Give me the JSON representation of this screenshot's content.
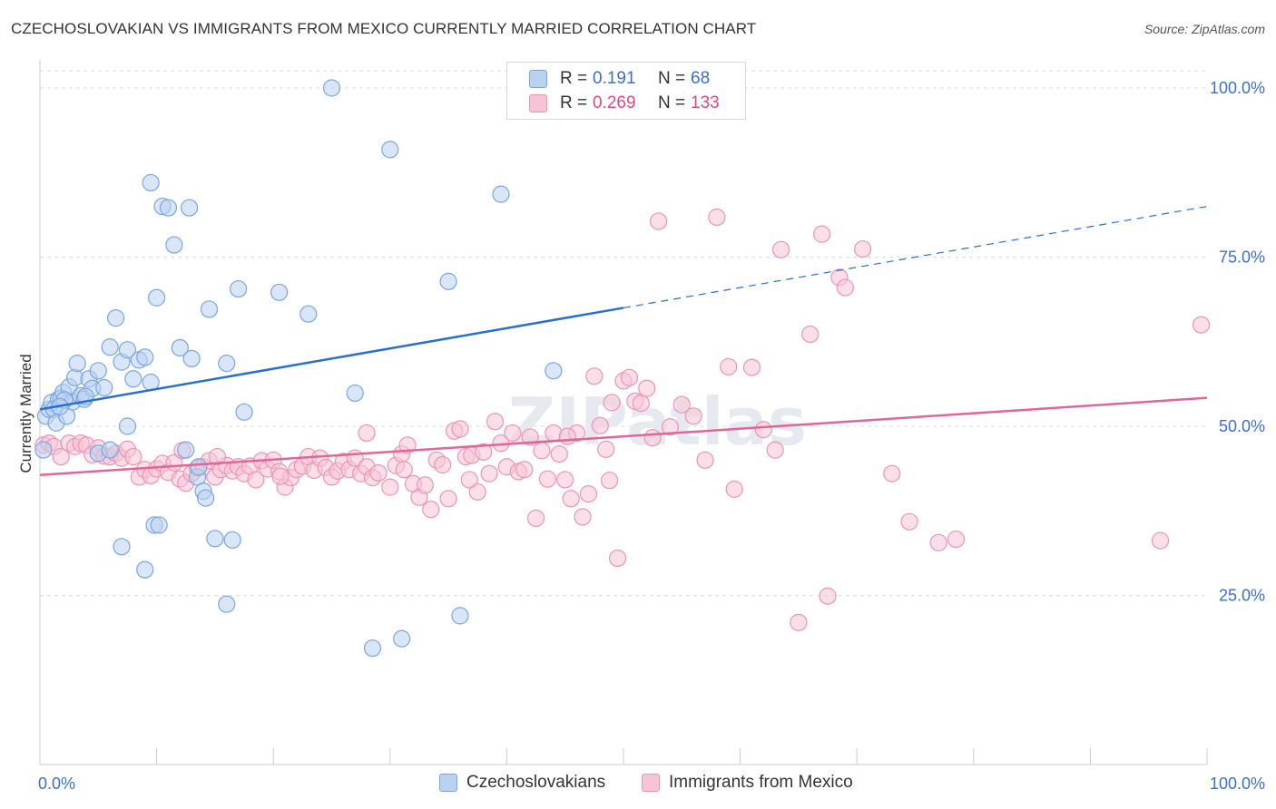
{
  "title": "CZECHOSLOVAKIAN VS IMMIGRANTS FROM MEXICO CURRENTLY MARRIED CORRELATION CHART",
  "source": "Source: ZipAtlas.com",
  "watermark": "ZIPatlas",
  "legend": {
    "rows": [
      {
        "r_label": "R =",
        "r_value": "0.191",
        "n_label": "N =",
        "n_value": "68"
      },
      {
        "r_label": "R =",
        "r_value": "0.269",
        "n_label": "N =",
        "n_value": "133"
      }
    ]
  },
  "bottom_legend": [
    "Czechoslovakians",
    "Immigrants from Mexico"
  ],
  "colors": {
    "blue_fill": "#b9d2f0",
    "blue_stroke": "#7aa6e0",
    "blue_line": "#2a6fcf",
    "pink_fill": "#f7c4d6",
    "pink_stroke": "#ec94b5",
    "pink_line": "#e0669a",
    "axis_label_blue": "#3a6fd0",
    "grid": "#dddddd"
  },
  "chart_data": {
    "type": "scatter",
    "ylabel": "Currently Married",
    "xlim": [
      0,
      100
    ],
    "ylim": [
      0,
      100
    ],
    "x_tick_labels": [
      "0.0%",
      "100.0%"
    ],
    "y_tick_labels": [
      {
        "value": 25,
        "label": "25.0%"
      },
      {
        "value": 50,
        "label": "50.0%"
      },
      {
        "value": 75,
        "label": "75.0%"
      },
      {
        "value": 100,
        "label": "100.0%"
      }
    ],
    "series": [
      {
        "name": "Czechoslovakians",
        "r": 0.191,
        "n": 68,
        "trend": {
          "x0": 0,
          "y0": 52.5,
          "x1": 50,
          "y1": 67.5,
          "dashed_to_x": 100,
          "dashed_to_y": 82.5
        },
        "points": [
          [
            0.3,
            46.5
          ],
          [
            0.5,
            51.5
          ],
          [
            0.8,
            52.5
          ],
          [
            1.0,
            53.5
          ],
          [
            1.2,
            52.5
          ],
          [
            1.4,
            50.5
          ],
          [
            1.6,
            54.0
          ],
          [
            1.8,
            54.2
          ],
          [
            2.0,
            55.0
          ],
          [
            2.3,
            51.5
          ],
          [
            2.5,
            55.8
          ],
          [
            2.8,
            53.6
          ],
          [
            3.0,
            57.2
          ],
          [
            3.2,
            59.3
          ],
          [
            3.5,
            54.5
          ],
          [
            3.8,
            54.0
          ],
          [
            4.2,
            57.0
          ],
          [
            4.5,
            55.6
          ],
          [
            5.0,
            58.2
          ],
          [
            5.5,
            55.7
          ],
          [
            6.0,
            61.7
          ],
          [
            6.5,
            66.0
          ],
          [
            7.0,
            59.5
          ],
          [
            7.5,
            61.3
          ],
          [
            8.0,
            57.0
          ],
          [
            8.5,
            59.8
          ],
          [
            9.0,
            60.2
          ],
          [
            9.5,
            86.0
          ],
          [
            10.0,
            69.0
          ],
          [
            10.5,
            82.5
          ],
          [
            11.0,
            82.3
          ],
          [
            11.5,
            76.8
          ],
          [
            12.0,
            61.6
          ],
          [
            12.5,
            46.5
          ],
          [
            13.0,
            60.0
          ],
          [
            13.5,
            42.5
          ],
          [
            14.0,
            40.4
          ],
          [
            14.5,
            67.3
          ],
          [
            15.0,
            33.4
          ],
          [
            16.0,
            59.3
          ],
          [
            17.0,
            70.3
          ],
          [
            17.5,
            52.1
          ],
          [
            20.5,
            69.8
          ],
          [
            23.0,
            66.6
          ],
          [
            25.0,
            100.0
          ],
          [
            27.0,
            54.9
          ],
          [
            30.0,
            90.9
          ],
          [
            35.0,
            71.4
          ],
          [
            36.0,
            22.0
          ],
          [
            39.5,
            84.3
          ],
          [
            44.0,
            58.2
          ],
          [
            5.0,
            46.0
          ],
          [
            6.0,
            46.5
          ],
          [
            7.0,
            32.2
          ],
          [
            7.5,
            50.0
          ],
          [
            9.5,
            56.5
          ],
          [
            9.8,
            35.4
          ],
          [
            10.2,
            35.4
          ],
          [
            12.8,
            82.3
          ],
          [
            14.2,
            39.4
          ],
          [
            16.0,
            23.7
          ],
          [
            16.5,
            33.2
          ],
          [
            28.5,
            17.2
          ],
          [
            31.0,
            18.6
          ],
          [
            9.0,
            28.8
          ],
          [
            13.6,
            44.0
          ],
          [
            3.9,
            54.4
          ],
          [
            2.1,
            53.9
          ],
          [
            1.7,
            52.9
          ]
        ]
      },
      {
        "name": "Immigrants from Mexico",
        "r": 0.269,
        "n": 133,
        "trend": {
          "x0": 0,
          "y0": 42.8,
          "x1": 100,
          "y1": 54.2
        },
        "points": [
          [
            0.3,
            47.2
          ],
          [
            0.8,
            47.5
          ],
          [
            1.2,
            47.0
          ],
          [
            1.8,
            45.5
          ],
          [
            2.5,
            47.5
          ],
          [
            3.0,
            47.0
          ],
          [
            3.5,
            47.5
          ],
          [
            4.0,
            47.2
          ],
          [
            4.5,
            45.8
          ],
          [
            5.0,
            46.8
          ],
          [
            5.5,
            45.6
          ],
          [
            6.0,
            45.5
          ],
          [
            6.5,
            46.0
          ],
          [
            7.0,
            45.3
          ],
          [
            7.5,
            46.6
          ],
          [
            8.0,
            45.5
          ],
          [
            8.5,
            42.5
          ],
          [
            9.0,
            43.6
          ],
          [
            9.5,
            42.7
          ],
          [
            10.0,
            43.7
          ],
          [
            10.5,
            44.5
          ],
          [
            11.0,
            43.2
          ],
          [
            11.5,
            44.6
          ],
          [
            12.0,
            42.2
          ],
          [
            12.5,
            41.6
          ],
          [
            13.0,
            43.0
          ],
          [
            13.5,
            43.8
          ],
          [
            14.0,
            44.0
          ],
          [
            14.5,
            44.9
          ],
          [
            15.0,
            42.5
          ],
          [
            15.5,
            43.6
          ],
          [
            16.0,
            44.2
          ],
          [
            16.5,
            43.4
          ],
          [
            17.0,
            44.0
          ],
          [
            17.5,
            43.0
          ],
          [
            18.0,
            44.1
          ],
          [
            18.5,
            42.1
          ],
          [
            19.0,
            44.9
          ],
          [
            19.5,
            43.7
          ],
          [
            20.0,
            45.0
          ],
          [
            20.5,
            43.3
          ],
          [
            21.0,
            41.0
          ],
          [
            21.5,
            42.4
          ],
          [
            22.0,
            43.6
          ],
          [
            22.5,
            44.1
          ],
          [
            23.0,
            45.5
          ],
          [
            23.5,
            43.5
          ],
          [
            24.0,
            45.3
          ],
          [
            24.5,
            43.9
          ],
          [
            25.0,
            42.5
          ],
          [
            25.5,
            43.4
          ],
          [
            26.0,
            44.8
          ],
          [
            26.5,
            43.6
          ],
          [
            27.0,
            45.3
          ],
          [
            27.5,
            43.0
          ],
          [
            28.0,
            44.0
          ],
          [
            28.5,
            42.4
          ],
          [
            29.0,
            43.1
          ],
          [
            30.0,
            41.0
          ],
          [
            30.5,
            44.2
          ],
          [
            31.0,
            45.9
          ],
          [
            31.5,
            47.2
          ],
          [
            32.0,
            41.5
          ],
          [
            32.5,
            39.5
          ],
          [
            33.0,
            41.3
          ],
          [
            33.5,
            37.7
          ],
          [
            34.0,
            45.0
          ],
          [
            34.5,
            44.3
          ],
          [
            35.0,
            39.3
          ],
          [
            35.5,
            49.3
          ],
          [
            36.0,
            49.6
          ],
          [
            36.5,
            45.5
          ],
          [
            37.0,
            45.7
          ],
          [
            37.5,
            40.3
          ],
          [
            38.0,
            46.2
          ],
          [
            38.5,
            43.0
          ],
          [
            39.0,
            50.7
          ],
          [
            39.5,
            47.5
          ],
          [
            40.0,
            44.0
          ],
          [
            40.5,
            49.0
          ],
          [
            41.0,
            43.3
          ],
          [
            41.5,
            43.6
          ],
          [
            42.0,
            48.4
          ],
          [
            42.5,
            36.4
          ],
          [
            43.0,
            46.4
          ],
          [
            43.5,
            42.2
          ],
          [
            44.0,
            49.0
          ],
          [
            44.5,
            45.9
          ],
          [
            45.0,
            42.1
          ],
          [
            45.5,
            39.3
          ],
          [
            46.0,
            49.0
          ],
          [
            46.5,
            36.6
          ],
          [
            47.0,
            40.0
          ],
          [
            47.5,
            57.4
          ],
          [
            48.0,
            50.1
          ],
          [
            48.5,
            46.6
          ],
          [
            49.0,
            53.5
          ],
          [
            49.5,
            30.5
          ],
          [
            50.0,
            56.7
          ],
          [
            50.5,
            57.2
          ],
          [
            51.0,
            53.7
          ],
          [
            51.5,
            53.4
          ],
          [
            52.0,
            55.6
          ],
          [
            52.5,
            48.3
          ],
          [
            53.0,
            80.3
          ],
          [
            54.0,
            49.9
          ],
          [
            55.0,
            53.2
          ],
          [
            56.0,
            51.5
          ],
          [
            57.0,
            45.0
          ],
          [
            58.0,
            80.9
          ],
          [
            59.0,
            58.8
          ],
          [
            59.5,
            40.7
          ],
          [
            61.0,
            58.7
          ],
          [
            62.0,
            49.5
          ],
          [
            63.0,
            46.5
          ],
          [
            63.5,
            76.1
          ],
          [
            65.0,
            21.0
          ],
          [
            66.0,
            63.6
          ],
          [
            67.0,
            78.4
          ],
          [
            67.5,
            24.9
          ],
          [
            68.5,
            72.0
          ],
          [
            69.0,
            70.5
          ],
          [
            70.5,
            76.2
          ],
          [
            73.0,
            43.0
          ],
          [
            74.5,
            35.9
          ],
          [
            77.0,
            32.8
          ],
          [
            78.5,
            33.3
          ],
          [
            96.0,
            33.1
          ],
          [
            99.5,
            65.0
          ],
          [
            48.8,
            42.0
          ],
          [
            28.0,
            49.0
          ],
          [
            15.2,
            45.5
          ],
          [
            36.8,
            42.1
          ],
          [
            20.6,
            42.6
          ],
          [
            31.2,
            43.6
          ],
          [
            45.2,
            48.5
          ],
          [
            12.2,
            46.4
          ]
        ]
      }
    ]
  }
}
